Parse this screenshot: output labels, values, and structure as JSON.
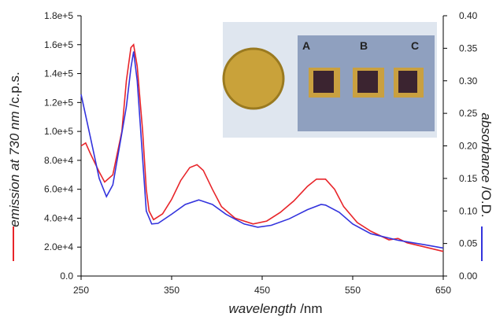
{
  "chart_data": {
    "type": "line",
    "xlabel_parts": [
      "wavelength",
      "/nm"
    ],
    "ylabel_parts": [
      "emission at 730 nm",
      "/c.p.s."
    ],
    "y2label_parts": [
      "absorbance",
      "/O.D."
    ],
    "xlim": [
      250,
      650
    ],
    "xticks": [
      250,
      350,
      450,
      550,
      650
    ],
    "ylim": [
      0,
      180000
    ],
    "yticks": [
      {
        "value": 0,
        "label": "0.0"
      },
      {
        "value": 20000,
        "label": "2.0e+4"
      },
      {
        "value": 40000,
        "label": "4.0e+4"
      },
      {
        "value": 60000,
        "label": "6.0e+4"
      },
      {
        "value": 80000,
        "label": "8.0e+4"
      },
      {
        "value": 100000,
        "label": "1.0e+5"
      },
      {
        "value": 120000,
        "label": "1.2e+5"
      },
      {
        "value": 140000,
        "label": "1.4e+5"
      },
      {
        "value": 160000,
        "label": "1.6e+5"
      },
      {
        "value": 180000,
        "label": "1.8e+5"
      }
    ],
    "y2lim": [
      0,
      0.4
    ],
    "y2ticks": [
      {
        "value": 0,
        "label": "0.00"
      },
      {
        "value": 0.05,
        "label": "0.05"
      },
      {
        "value": 0.1,
        "label": "0.10"
      },
      {
        "value": 0.15,
        "label": "0.15"
      },
      {
        "value": 0.2,
        "label": "0.20"
      },
      {
        "value": 0.25,
        "label": "0.25"
      },
      {
        "value": 0.3,
        "label": "0.30"
      },
      {
        "value": 0.35,
        "label": "0.35"
      },
      {
        "value": 0.4,
        "label": "0.40"
      }
    ],
    "inset_labels": [
      "A",
      "B",
      "C"
    ],
    "series": [
      {
        "color": "#e8252a",
        "x": [
          250,
          255,
          260,
          270,
          276,
          285,
          295,
          300,
          305,
          308,
          312,
          318,
          322,
          325,
          330,
          340,
          350,
          360,
          370,
          378,
          385,
          395,
          405,
          420,
          440,
          455,
          470,
          485,
          500,
          510,
          520,
          530,
          540,
          555,
          570,
          590,
          600,
          610,
          630,
          650
        ],
        "values": [
          90000,
          92000,
          85000,
          72000,
          65000,
          70000,
          100000,
          135000,
          158000,
          160000,
          145000,
          100000,
          60000,
          45000,
          39000,
          43000,
          53000,
          66000,
          75000,
          77000,
          73000,
          60000,
          48000,
          40000,
          36000,
          38000,
          44000,
          52000,
          62000,
          67000,
          67000,
          60000,
          48000,
          37000,
          31000,
          25000,
          26000,
          23000,
          20000,
          17000
        ]
      },
      {
        "color": "#3333dd",
        "axis": "y2",
        "x": [
          250,
          260,
          270,
          278,
          285,
          295,
          300,
          305,
          308,
          312,
          318,
          322,
          328,
          335,
          350,
          365,
          380,
          395,
          410,
          430,
          445,
          460,
          480,
          500,
          515,
          520,
          535,
          550,
          570,
          600,
          630,
          650
        ],
        "values": [
          0.279,
          0.215,
          0.15,
          0.122,
          0.14,
          0.22,
          0.26,
          0.32,
          0.345,
          0.3,
          0.18,
          0.1,
          0.08,
          0.081,
          0.095,
          0.11,
          0.117,
          0.11,
          0.095,
          0.08,
          0.075,
          0.078,
          0.088,
          0.102,
          0.11,
          0.109,
          0.098,
          0.08,
          0.065,
          0.055,
          0.048,
          0.043
        ]
      }
    ]
  }
}
